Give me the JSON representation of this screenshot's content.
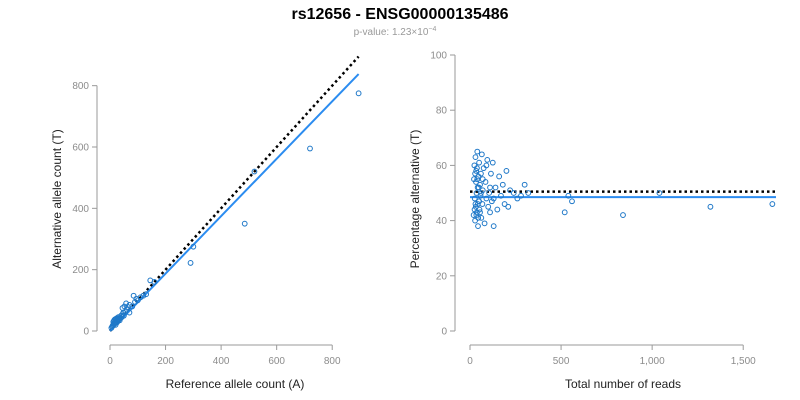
{
  "title": "rs12656 - ENSG00000135486",
  "subtitle": {
    "prefix": "p-value: 1.23×10",
    "exponent": "−4"
  },
  "colors": {
    "points": "#1f78c8",
    "fit": "#2b8cf0",
    "reference_line": "#000000",
    "axis": "#9a9a9a",
    "tick_label": "#8c8c8c"
  },
  "chart_data": [
    {
      "type": "scatter",
      "xlabel": "Reference allele count (A)",
      "ylabel": "Alternative allele count (T)",
      "xlim": [
        0,
        900
      ],
      "ylim": [
        0,
        900
      ],
      "xticks": [
        0,
        200,
        400,
        600,
        800
      ],
      "yticks": [
        0,
        200,
        400,
        600,
        800
      ],
      "xtick_labels": [
        "0",
        "200",
        "400",
        "600",
        "800"
      ],
      "ytick_labels": [
        "0",
        "200",
        "400",
        "600",
        "800"
      ],
      "points": {
        "x": [
          5,
          8,
          10,
          12,
          15,
          18,
          20,
          22,
          25,
          28,
          30,
          12,
          15,
          18,
          20,
          22,
          25,
          28,
          30,
          33,
          35,
          38,
          40,
          42,
          45,
          48,
          50,
          55,
          60,
          65,
          70,
          80,
          90,
          100,
          110,
          120,
          130,
          145,
          160,
          45,
          52,
          58,
          70,
          85,
          95,
          290,
          300,
          485,
          520,
          720,
          895,
          15,
          20,
          30
        ],
        "y": [
          10,
          15,
          18,
          20,
          22,
          25,
          20,
          30,
          28,
          32,
          35,
          30,
          35,
          38,
          28,
          40,
          42,
          38,
          45,
          40,
          35,
          42,
          50,
          45,
          55,
          60,
          50,
          62,
          70,
          78,
          85,
          80,
          95,
          100,
          110,
          115,
          120,
          165,
          160,
          75,
          80,
          90,
          60,
          115,
          105,
          222,
          275,
          350,
          520,
          595,
          775,
          25,
          35,
          40
        ]
      },
      "fit_line": {
        "x": [
          0,
          895
        ],
        "y": [
          0,
          838
        ]
      },
      "reference_line": {
        "x": [
          0,
          895
        ],
        "y": [
          0,
          895
        ]
      }
    },
    {
      "type": "scatter",
      "xlabel": "Total number of reads",
      "ylabel": "Percentage alternative (T)",
      "xlim": [
        0,
        1680
      ],
      "ylim": [
        0,
        100
      ],
      "xticks": [
        0,
        500,
        1000,
        1500
      ],
      "yticks": [
        0,
        20,
        40,
        60,
        80,
        100
      ],
      "xtick_labels": [
        "0",
        "500",
        "1,000",
        "1,500"
      ],
      "ytick_labels": [
        "0",
        "20",
        "40",
        "60",
        "80",
        "100"
      ],
      "points": {
        "x": [
          20,
          22,
          24,
          26,
          28,
          30,
          32,
          34,
          36,
          38,
          40,
          42,
          44,
          46,
          48,
          50,
          52,
          55,
          58,
          60,
          62,
          65,
          68,
          70,
          75,
          80,
          85,
          90,
          95,
          100,
          105,
          110,
          115,
          120,
          125,
          130,
          140,
          150,
          160,
          170,
          180,
          190,
          200,
          210,
          220,
          240,
          260,
          280,
          300,
          320,
          25,
          30,
          35,
          40,
          45,
          50,
          55,
          60,
          28,
          33,
          38,
          43,
          48,
          520,
          540,
          560,
          840,
          1040,
          1320,
          1660,
          70,
          90,
          110,
          130
        ],
        "y": [
          42,
          55,
          60,
          48,
          40,
          63,
          45,
          58,
          50,
          43,
          65,
          52,
          38,
          56,
          47,
          61,
          44,
          53,
          49,
          57,
          41,
          64,
          46,
          51,
          59,
          39,
          54,
          48,
          62,
          45,
          50,
          43,
          57,
          47,
          61,
          38,
          52,
          44,
          56,
          49,
          53,
          46,
          58,
          45,
          51,
          50,
          48,
          49,
          53,
          50,
          44,
          46,
          42,
          55,
          41,
          47,
          43,
          50,
          57,
          54,
          59,
          46,
          52,
          43,
          49,
          47,
          42,
          50,
          45,
          46,
          55,
          60,
          52,
          48
        ]
      },
      "fit_line": {
        "x": [
          0,
          1680
        ],
        "y": [
          48.5,
          48.5
        ]
      },
      "reference_line": {
        "x": [
          0,
          1680
        ],
        "y": [
          50.5,
          50.5
        ]
      }
    }
  ]
}
